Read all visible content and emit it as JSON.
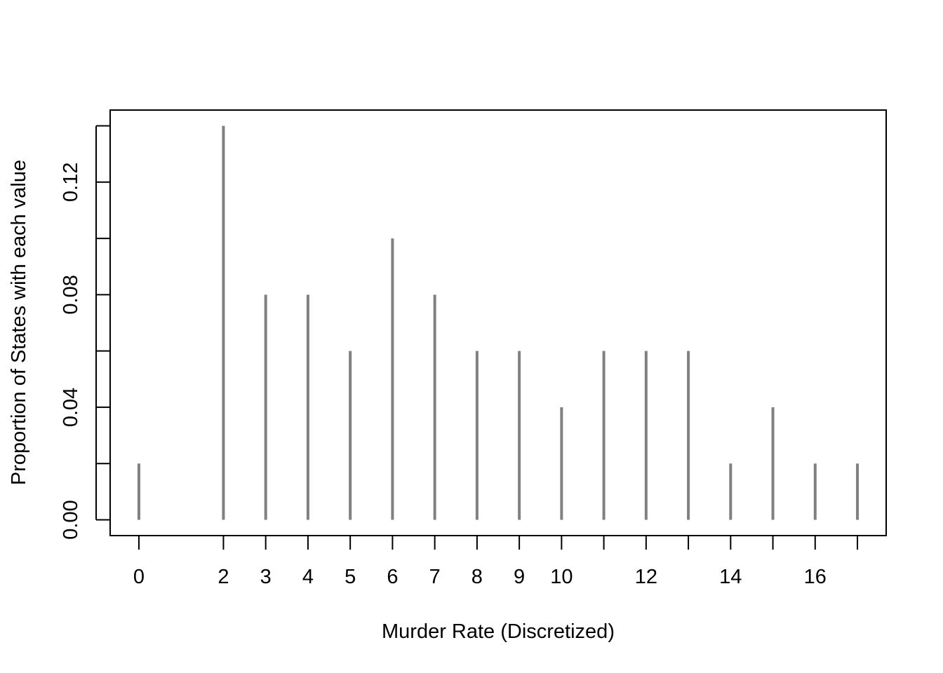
{
  "chart_data": {
    "type": "bar",
    "xlabel": "Murder Rate (Discretized)",
    "ylabel": "Proportion of States with each value",
    "x": [
      0,
      2,
      3,
      4,
      5,
      6,
      7,
      8,
      9,
      10,
      11,
      12,
      13,
      14,
      15,
      16,
      17
    ],
    "values": [
      0.02,
      0.14,
      0.08,
      0.08,
      0.06,
      0.1,
      0.08,
      0.06,
      0.06,
      0.04,
      0.06,
      0.06,
      0.06,
      0.02,
      0.04,
      0.02,
      0.02
    ],
    "x_tick_marks": [
      0,
      2,
      3,
      4,
      5,
      6,
      7,
      8,
      9,
      10,
      11,
      12,
      13,
      14,
      15,
      16,
      17
    ],
    "x_tick_labels": [
      "0",
      "2",
      "3",
      "4",
      "5",
      "6",
      "7",
      "8",
      "9",
      "10",
      "12",
      "14",
      "16"
    ],
    "y_ticks": [
      0,
      0.02,
      0.04,
      0.06,
      0.08,
      0.1,
      0.12,
      0.14
    ],
    "y_tick_labels": [
      "0.00",
      "0.04",
      "0.08",
      "0.12"
    ],
    "xlim": [
      -0.68,
      17.68
    ],
    "ylim": [
      -0.0056,
      0.1456
    ],
    "grid": false,
    "line_color": "#808080"
  }
}
